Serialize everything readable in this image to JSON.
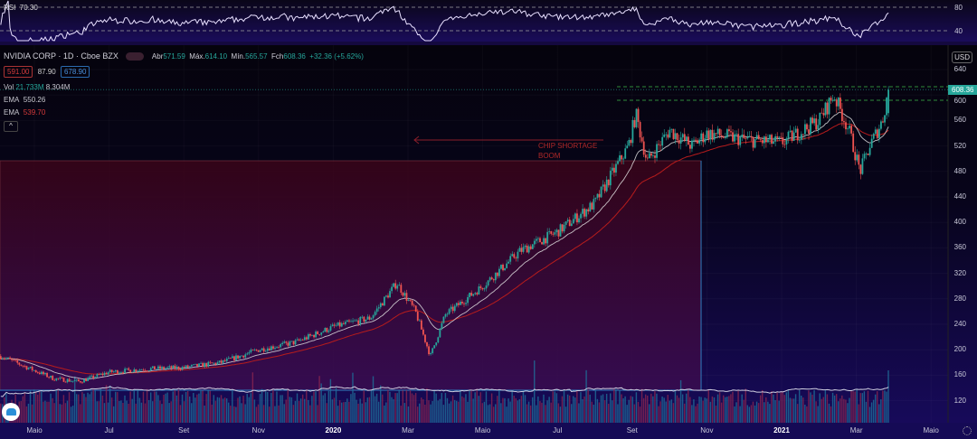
{
  "rsi": {
    "label": "RSI",
    "value": "70.30",
    "ticks": [
      "80",
      "40"
    ]
  },
  "header": {
    "symbol": "NVIDIA CORP · 1D · Cboe BZX",
    "open_label": "Abr",
    "open": "571.59",
    "high_label": "Máx.",
    "high": "614.10",
    "low_label": "Mín.",
    "low": "565.57",
    "close_label": "Fch",
    "close": "608.36",
    "change": "+32.36 (+5.62%)",
    "sell": "591.00",
    "spread": "87.90",
    "buy": "678.90"
  },
  "volume": {
    "label": "Vol",
    "value": "21.733M",
    "ma": "8.304M"
  },
  "ema1": {
    "label": "EMA",
    "value": "550.26"
  },
  "ema2": {
    "label": "EMA",
    "value": "539.70"
  },
  "collapse_label": "^",
  "currency": "USD",
  "last_price": "608.36",
  "annotation": {
    "text_line1": "CHIP SHORTAGE",
    "text_line2": "BOOM"
  },
  "colors": {
    "up": "#26a69a",
    "down": "#ef5350",
    "ema_fast": "#e0e0e0",
    "ema_slow": "#b71c1c",
    "accent": "#26a69a"
  },
  "chart_data": {
    "type": "candlestick",
    "title": "NVIDIA CORP · 1D · Cboe BZX",
    "ylabel": "USD",
    "ylim": [
      100,
      650
    ],
    "price_ticks": [
      "640",
      "600",
      "560",
      "520",
      "480",
      "440",
      "400",
      "360",
      "320",
      "280",
      "240",
      "200",
      "160",
      "120"
    ],
    "time_ticks": [
      {
        "label": "Maio",
        "m": 0
      },
      {
        "label": "Jul",
        "m": 2
      },
      {
        "label": "Set",
        "m": 4
      },
      {
        "label": "Nov",
        "m": 6
      },
      {
        "label": "2020",
        "m": 8,
        "bold": true
      },
      {
        "label": "Mar",
        "m": 10
      },
      {
        "label": "Maio",
        "m": 12
      },
      {
        "label": "Jul",
        "m": 14
      },
      {
        "label": "Set",
        "m": 16
      },
      {
        "label": "Nov",
        "m": 18
      },
      {
        "label": "2021",
        "m": 20,
        "bold": true
      },
      {
        "label": "Mar",
        "m": 22
      },
      {
        "label": "Maio",
        "m": 24
      }
    ],
    "approx_close_path": [
      {
        "m": -0.9,
        "v": 190
      },
      {
        "m": 0.5,
        "v": 155
      },
      {
        "m": 1.2,
        "v": 150
      },
      {
        "m": 2,
        "v": 165
      },
      {
        "m": 3,
        "v": 170
      },
      {
        "m": 4,
        "v": 172
      },
      {
        "m": 5,
        "v": 180
      },
      {
        "m": 6,
        "v": 200
      },
      {
        "m": 7,
        "v": 212
      },
      {
        "m": 8,
        "v": 236
      },
      {
        "m": 9,
        "v": 250
      },
      {
        "m": 9.7,
        "v": 305
      },
      {
        "m": 10.2,
        "v": 260
      },
      {
        "m": 10.6,
        "v": 190
      },
      {
        "m": 11,
        "v": 255
      },
      {
        "m": 12,
        "v": 300
      },
      {
        "m": 13,
        "v": 355
      },
      {
        "m": 14,
        "v": 385
      },
      {
        "m": 15,
        "v": 430
      },
      {
        "m": 15.9,
        "v": 520
      },
      {
        "m": 16.1,
        "v": 570
      },
      {
        "m": 16.4,
        "v": 495
      },
      {
        "m": 17,
        "v": 545
      },
      {
        "m": 17.6,
        "v": 520
      },
      {
        "m": 18,
        "v": 540
      },
      {
        "m": 19,
        "v": 530
      },
      {
        "m": 20,
        "v": 525
      },
      {
        "m": 21,
        "v": 560
      },
      {
        "m": 21.4,
        "v": 600
      },
      {
        "m": 21.8,
        "v": 545
      },
      {
        "m": 22.1,
        "v": 480
      },
      {
        "m": 22.4,
        "v": 525
      },
      {
        "m": 22.7,
        "v": 560
      },
      {
        "m": 22.86,
        "v": 608.36
      }
    ],
    "last_bar": {
      "open": 571.59,
      "high": 614.1,
      "low": 565.57,
      "close": 608.36
    },
    "indicators": [
      "EMA fast",
      "EMA slow",
      "Volume",
      "RSI 14"
    ]
  }
}
